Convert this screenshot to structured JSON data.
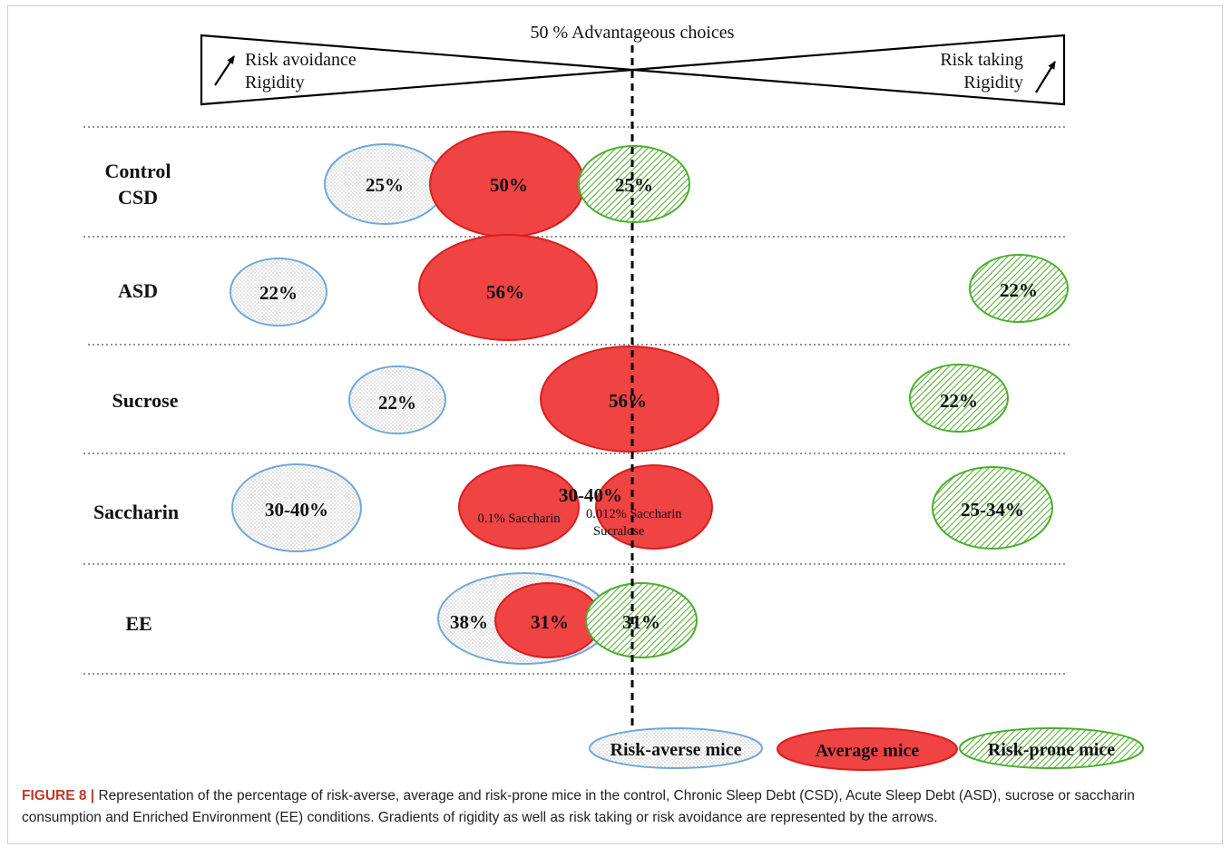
{
  "figure": {
    "header": {
      "center_label": "50 % Advantageous choices",
      "left_line1": "Risk avoidance",
      "left_line2": "Rigidity",
      "right_line1": "Risk taking",
      "right_line2": "Rigidity"
    },
    "rows": [
      {
        "label_line1": "Control",
        "label_line2": "CSD",
        "risk_averse": "25%",
        "average": "50%",
        "risk_prone": "25%"
      },
      {
        "label_line1": "ASD",
        "risk_averse": "22%",
        "average": "56%",
        "risk_prone": "22%"
      },
      {
        "label_line1": "Sucrose",
        "risk_averse": "22%",
        "average": "56%",
        "risk_prone": "22%"
      },
      {
        "label_line1": "Saccharin",
        "risk_averse": "30-40%",
        "average": "30-40%",
        "risk_prone": "25-34%",
        "average_left_note": "0.1% Saccharin",
        "average_right_note_line1": "0.012% Saccharin",
        "average_right_note_line2": "Sucralose"
      },
      {
        "label_line1": "EE",
        "risk_averse": "38%",
        "average": "31%",
        "risk_prone": "31%"
      }
    ],
    "legend": {
      "risk_averse": "Risk-averse mice",
      "average": "Average mice",
      "risk_prone": "Risk-prone mice"
    },
    "colors": {
      "average_fill": "#f04343",
      "average_stroke": "#d81e1e",
      "risk_averse_stroke": "#6fa8dc",
      "risk_prone_stroke": "#4cae2c",
      "risk_prone_hatch": "#5bb038"
    }
  },
  "caption": {
    "lead": "FIGURE 8 |",
    "text": " Representation of the percentage of risk-averse, average and risk-prone mice in the control, Chronic Sleep Debt (CSD), Acute Sleep Debt (ASD), sucrose or saccharin consumption and Enriched Environment (EE) conditions. Gradients of rigidity as well as risk taking or risk avoidance are represented by the arrows."
  }
}
